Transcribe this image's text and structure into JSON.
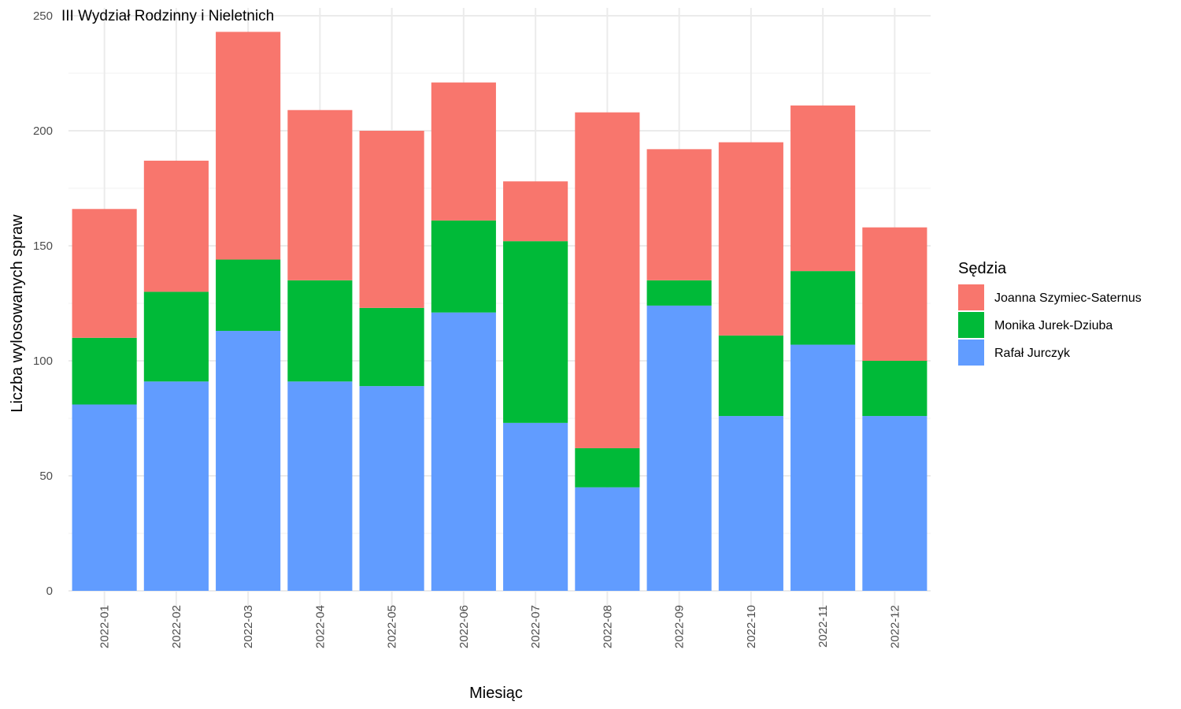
{
  "chart_data": {
    "type": "bar",
    "stacked": true,
    "title": "III Wydział Rodzinny i Nieletnich",
    "xlabel": "Miesiąc",
    "ylabel": "Liczba wylosowanych spraw",
    "ylim": [
      0,
      250
    ],
    "yticks": [
      0,
      50,
      100,
      150,
      200,
      250
    ],
    "grid": true,
    "legend_position": "right",
    "legend_title": "Sędzia",
    "categories": [
      "2022-01",
      "2022-02",
      "2022-03",
      "2022-04",
      "2022-05",
      "2022-06",
      "2022-07",
      "2022-08",
      "2022-09",
      "2022-10",
      "2022-11",
      "2022-12"
    ],
    "series": [
      {
        "name": "Rafał Jurczyk",
        "color": "#619CFF",
        "values": [
          81,
          91,
          113,
          91,
          89,
          121,
          73,
          45,
          124,
          76,
          107,
          76
        ]
      },
      {
        "name": "Monika Jurek-Dziuba",
        "color": "#00BA38",
        "values": [
          29,
          39,
          31,
          44,
          34,
          40,
          79,
          17,
          11,
          35,
          32,
          24
        ]
      },
      {
        "name": "Joanna Szymiec-Saternus",
        "color": "#F8766D",
        "values": [
          56,
          57,
          99,
          74,
          77,
          60,
          26,
          146,
          57,
          84,
          72,
          58
        ]
      }
    ],
    "legend_order": [
      "Joanna Szymiec-Saternus",
      "Monika Jurek-Dziuba",
      "Rafał Jurczyk"
    ]
  }
}
